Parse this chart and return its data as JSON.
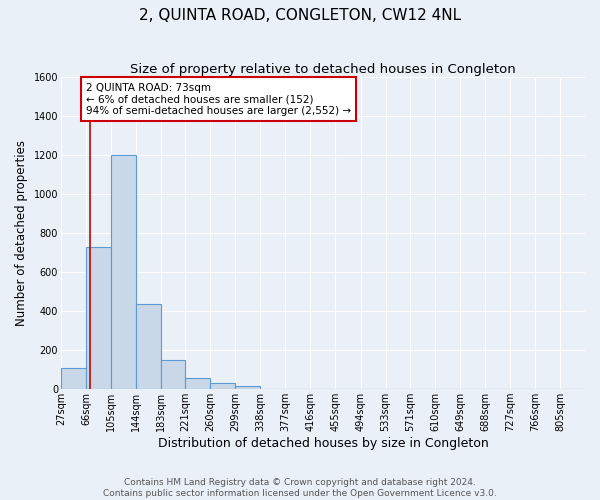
{
  "title": "2, QUINTA ROAD, CONGLETON, CW12 4NL",
  "subtitle": "Size of property relative to detached houses in Congleton",
  "xlabel": "Distribution of detached houses by size in Congleton",
  "ylabel": "Number of detached properties",
  "footer_line1": "Contains HM Land Registry data © Crown copyright and database right 2024.",
  "footer_line2": "Contains public sector information licensed under the Open Government Licence v3.0.",
  "bin_labels": [
    "27sqm",
    "66sqm",
    "105sqm",
    "144sqm",
    "183sqm",
    "221sqm",
    "260sqm",
    "299sqm",
    "338sqm",
    "377sqm",
    "416sqm",
    "455sqm",
    "494sqm",
    "533sqm",
    "571sqm",
    "610sqm",
    "649sqm",
    "688sqm",
    "727sqm",
    "766sqm",
    "805sqm"
  ],
  "bin_starts": [
    27,
    66,
    105,
    144,
    183,
    221,
    260,
    299,
    338,
    377,
    416,
    455,
    494,
    533,
    571,
    610,
    649,
    688,
    727,
    766,
    805
  ],
  "bar_values": [
    110,
    730,
    1200,
    435,
    150,
    55,
    32,
    15,
    0,
    0,
    0,
    0,
    0,
    0,
    0,
    0,
    0,
    0,
    0,
    0,
    0
  ],
  "bar_color": "#c8d8e8",
  "bar_edge_color": "#5b9bd5",
  "bar_edge_width": 0.8,
  "property_line_x": 73,
  "property_line_color": "#cc0000",
  "annotation_text": "2 QUINTA ROAD: 73sqm\n← 6% of detached houses are smaller (152)\n94% of semi-detached houses are larger (2,552) →",
  "annotation_box_color": "#ffffff",
  "annotation_box_edge_color": "#cc0000",
  "ylim": [
    0,
    1600
  ],
  "yticks": [
    0,
    200,
    400,
    600,
    800,
    1000,
    1200,
    1400,
    1600
  ],
  "xlim_min": 27,
  "xlim_max": 844,
  "background_color": "#eaf0f8",
  "axes_background_color": "#eaf0f8",
  "grid_color": "#ffffff",
  "title_fontsize": 11,
  "subtitle_fontsize": 9.5,
  "xlabel_fontsize": 9,
  "ylabel_fontsize": 8.5,
  "tick_fontsize": 7,
  "annotation_fontsize": 7.5,
  "footer_fontsize": 6.5
}
